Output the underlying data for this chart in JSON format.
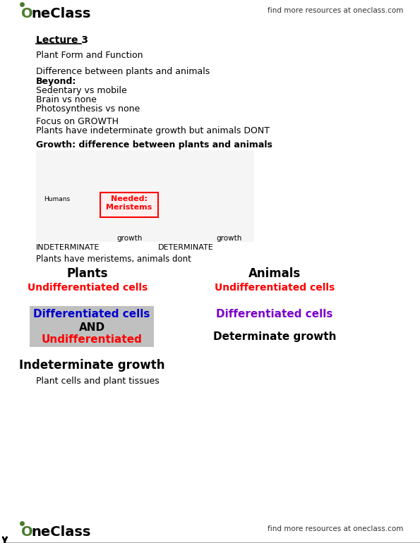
{
  "bg_color": "#ffffff",
  "header_logo_text": "OneClass",
  "header_right_text": "find more resources at oneclass.com",
  "footer_logo_text": "OneClass",
  "footer_right_text": "find more resources at oneclass.com",
  "lecture_title": "Lecture 3",
  "subtitle": "Plant Form and Function",
  "text_block": [
    {
      "text": "Difference between plants and animals",
      "bold": false
    },
    {
      "text": "Beyond:",
      "bold": true
    },
    {
      "text": "Sedentary vs mobile",
      "bold": false
    },
    {
      "text": "Brain vs none",
      "bold": false
    },
    {
      "text": "Photosynthesis vs none",
      "bold": false
    }
  ],
  "text_block2": [
    {
      "text": "Focus on GROWTH",
      "bold": false
    },
    {
      "text": "Plants have indeterminate growth but animals DONT",
      "bold": false
    }
  ],
  "growth_header": "Growth: difference between plants and animals",
  "indeterminate_label": "INDETERMINATE",
  "determinate_label": "DETERMINATE",
  "meristems_label": "Needed:\nMeristems",
  "plants_meristems_note": "Plants have meristems, animals dont",
  "plants_heading": "Plants",
  "animals_heading": "Animals",
  "undiff_plants": "Undifferentiated cells",
  "undiff_animals": "Undifferentiated cells",
  "diff_plants_box": [
    "Differentiated cells",
    "AND",
    "Undifferentiated"
  ],
  "diff_animals": "Differentiated cells",
  "indeterminate_growth": "Indeterminate growth",
  "determinate_growth": "Determinate growth",
  "footer_note": "Plant cells and plant tissues",
  "red_color": "#ff0000",
  "blue_color": "#0000cc",
  "purple_color": "#7b00cc",
  "black_color": "#000000",
  "gray_box_color": "#c0c0c0",
  "green_color": "#2e7d32",
  "logo_green": "#4a7c2f"
}
